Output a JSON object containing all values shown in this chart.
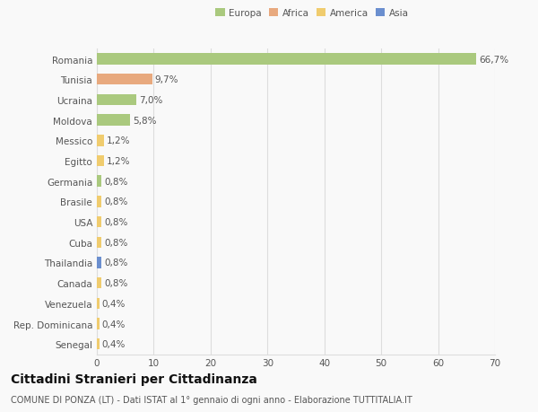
{
  "categories": [
    "Romania",
    "Tunisia",
    "Ucraina",
    "Moldova",
    "Messico",
    "Egitto",
    "Germania",
    "Brasile",
    "USA",
    "Cuba",
    "Thailandia",
    "Canada",
    "Venezuela",
    "Rep. Dominicana",
    "Senegal"
  ],
  "values": [
    66.7,
    9.7,
    7.0,
    5.8,
    1.2,
    1.2,
    0.8,
    0.8,
    0.8,
    0.8,
    0.8,
    0.8,
    0.4,
    0.4,
    0.4
  ],
  "labels": [
    "66,7%",
    "9,7%",
    "7,0%",
    "5,8%",
    "1,2%",
    "1,2%",
    "0,8%",
    "0,8%",
    "0,8%",
    "0,8%",
    "0,8%",
    "0,8%",
    "0,4%",
    "0,4%",
    "0,4%"
  ],
  "colors": [
    "#aac97e",
    "#e8a97e",
    "#aac97e",
    "#aac97e",
    "#f0cc6e",
    "#f0cc6e",
    "#aac97e",
    "#f0cc6e",
    "#f0cc6e",
    "#f0cc6e",
    "#6b8fcf",
    "#f0cc6e",
    "#f0cc6e",
    "#f0cc6e",
    "#f0cc6e"
  ],
  "legend": [
    {
      "label": "Europa",
      "color": "#aac97e"
    },
    {
      "label": "Africa",
      "color": "#e8a97e"
    },
    {
      "label": "America",
      "color": "#f0cc6e"
    },
    {
      "label": "Asia",
      "color": "#6b8fcf"
    }
  ],
  "xlim": [
    0,
    70
  ],
  "xticks": [
    0,
    10,
    20,
    30,
    40,
    50,
    60,
    70
  ],
  "title": "Cittadini Stranieri per Cittadinanza",
  "subtitle": "COMUNE DI PONZA (LT) - Dati ISTAT al 1° gennaio di ogni anno - Elaborazione TUTTITALIA.IT",
  "background_color": "#f9f9f9",
  "bar_height": 0.55,
  "grid_color": "#dddddd",
  "text_color": "#555555",
  "label_fontsize": 7.5,
  "tick_fontsize": 7.5,
  "title_fontsize": 10,
  "subtitle_fontsize": 7
}
